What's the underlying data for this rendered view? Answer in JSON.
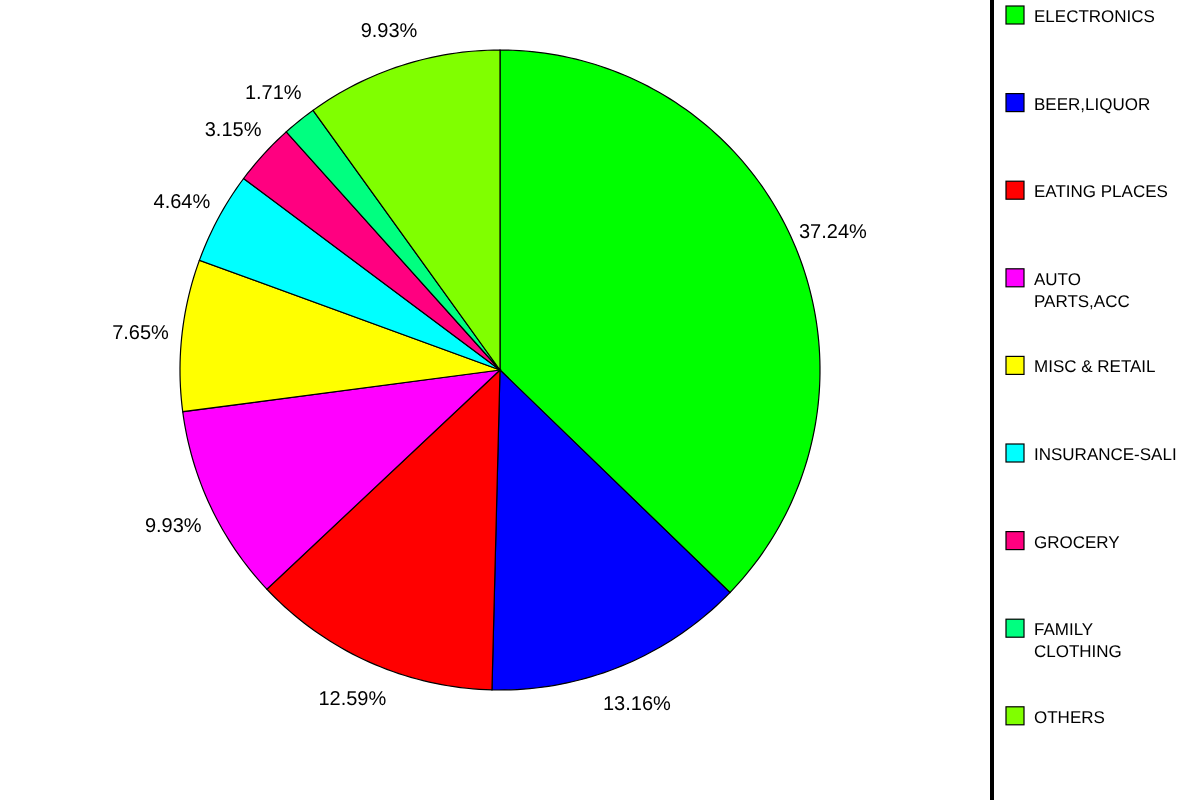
{
  "chart_data": {
    "type": "pie",
    "categories": [
      "ELECTRONICS",
      "BEER,LIQUOR",
      "EATING PLACES",
      "AUTO PARTS,ACC",
      "MISC & RETAIL",
      "INSURANCE-SALI",
      "GROCERY",
      "FAMILY CLOTHING",
      "OTHERS"
    ],
    "values": [
      37.24,
      13.16,
      12.59,
      9.93,
      7.65,
      4.64,
      3.15,
      1.71,
      9.93
    ],
    "colors": [
      "#00ff00",
      "#0000ff",
      "#ff0000",
      "#ff00ff",
      "#ffff00",
      "#00ffff",
      "#ff0080",
      "#00ff80",
      "#80ff00"
    ],
    "value_labels": [
      "37.24%",
      "13.16%",
      "12.59%",
      "9.93%",
      "7.65%",
      "4.64%",
      "3.15%",
      "1.71%",
      "9.93%"
    ],
    "legend": "right"
  }
}
